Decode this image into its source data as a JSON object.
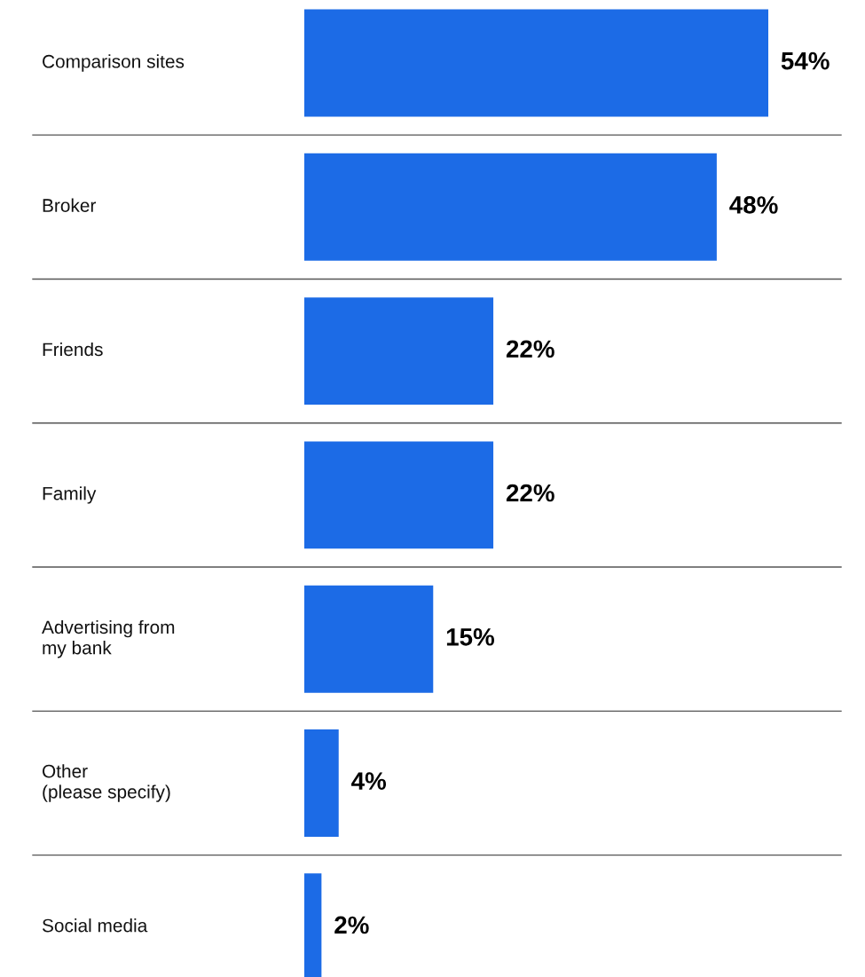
{
  "chart_data": {
    "type": "bar",
    "orientation": "horizontal",
    "categories": [
      "Comparison sites",
      "Broker",
      "Friends",
      "Family",
      "Advertising from\nmy bank",
      "Other\n(please specify)",
      "Social media"
    ],
    "values": [
      54,
      48,
      22,
      22,
      15,
      4,
      2
    ],
    "value_labels": [
      "54%",
      "48%",
      "22%",
      "22%",
      "15%",
      "4%",
      "2%"
    ],
    "color": "#1c6be6"
  }
}
